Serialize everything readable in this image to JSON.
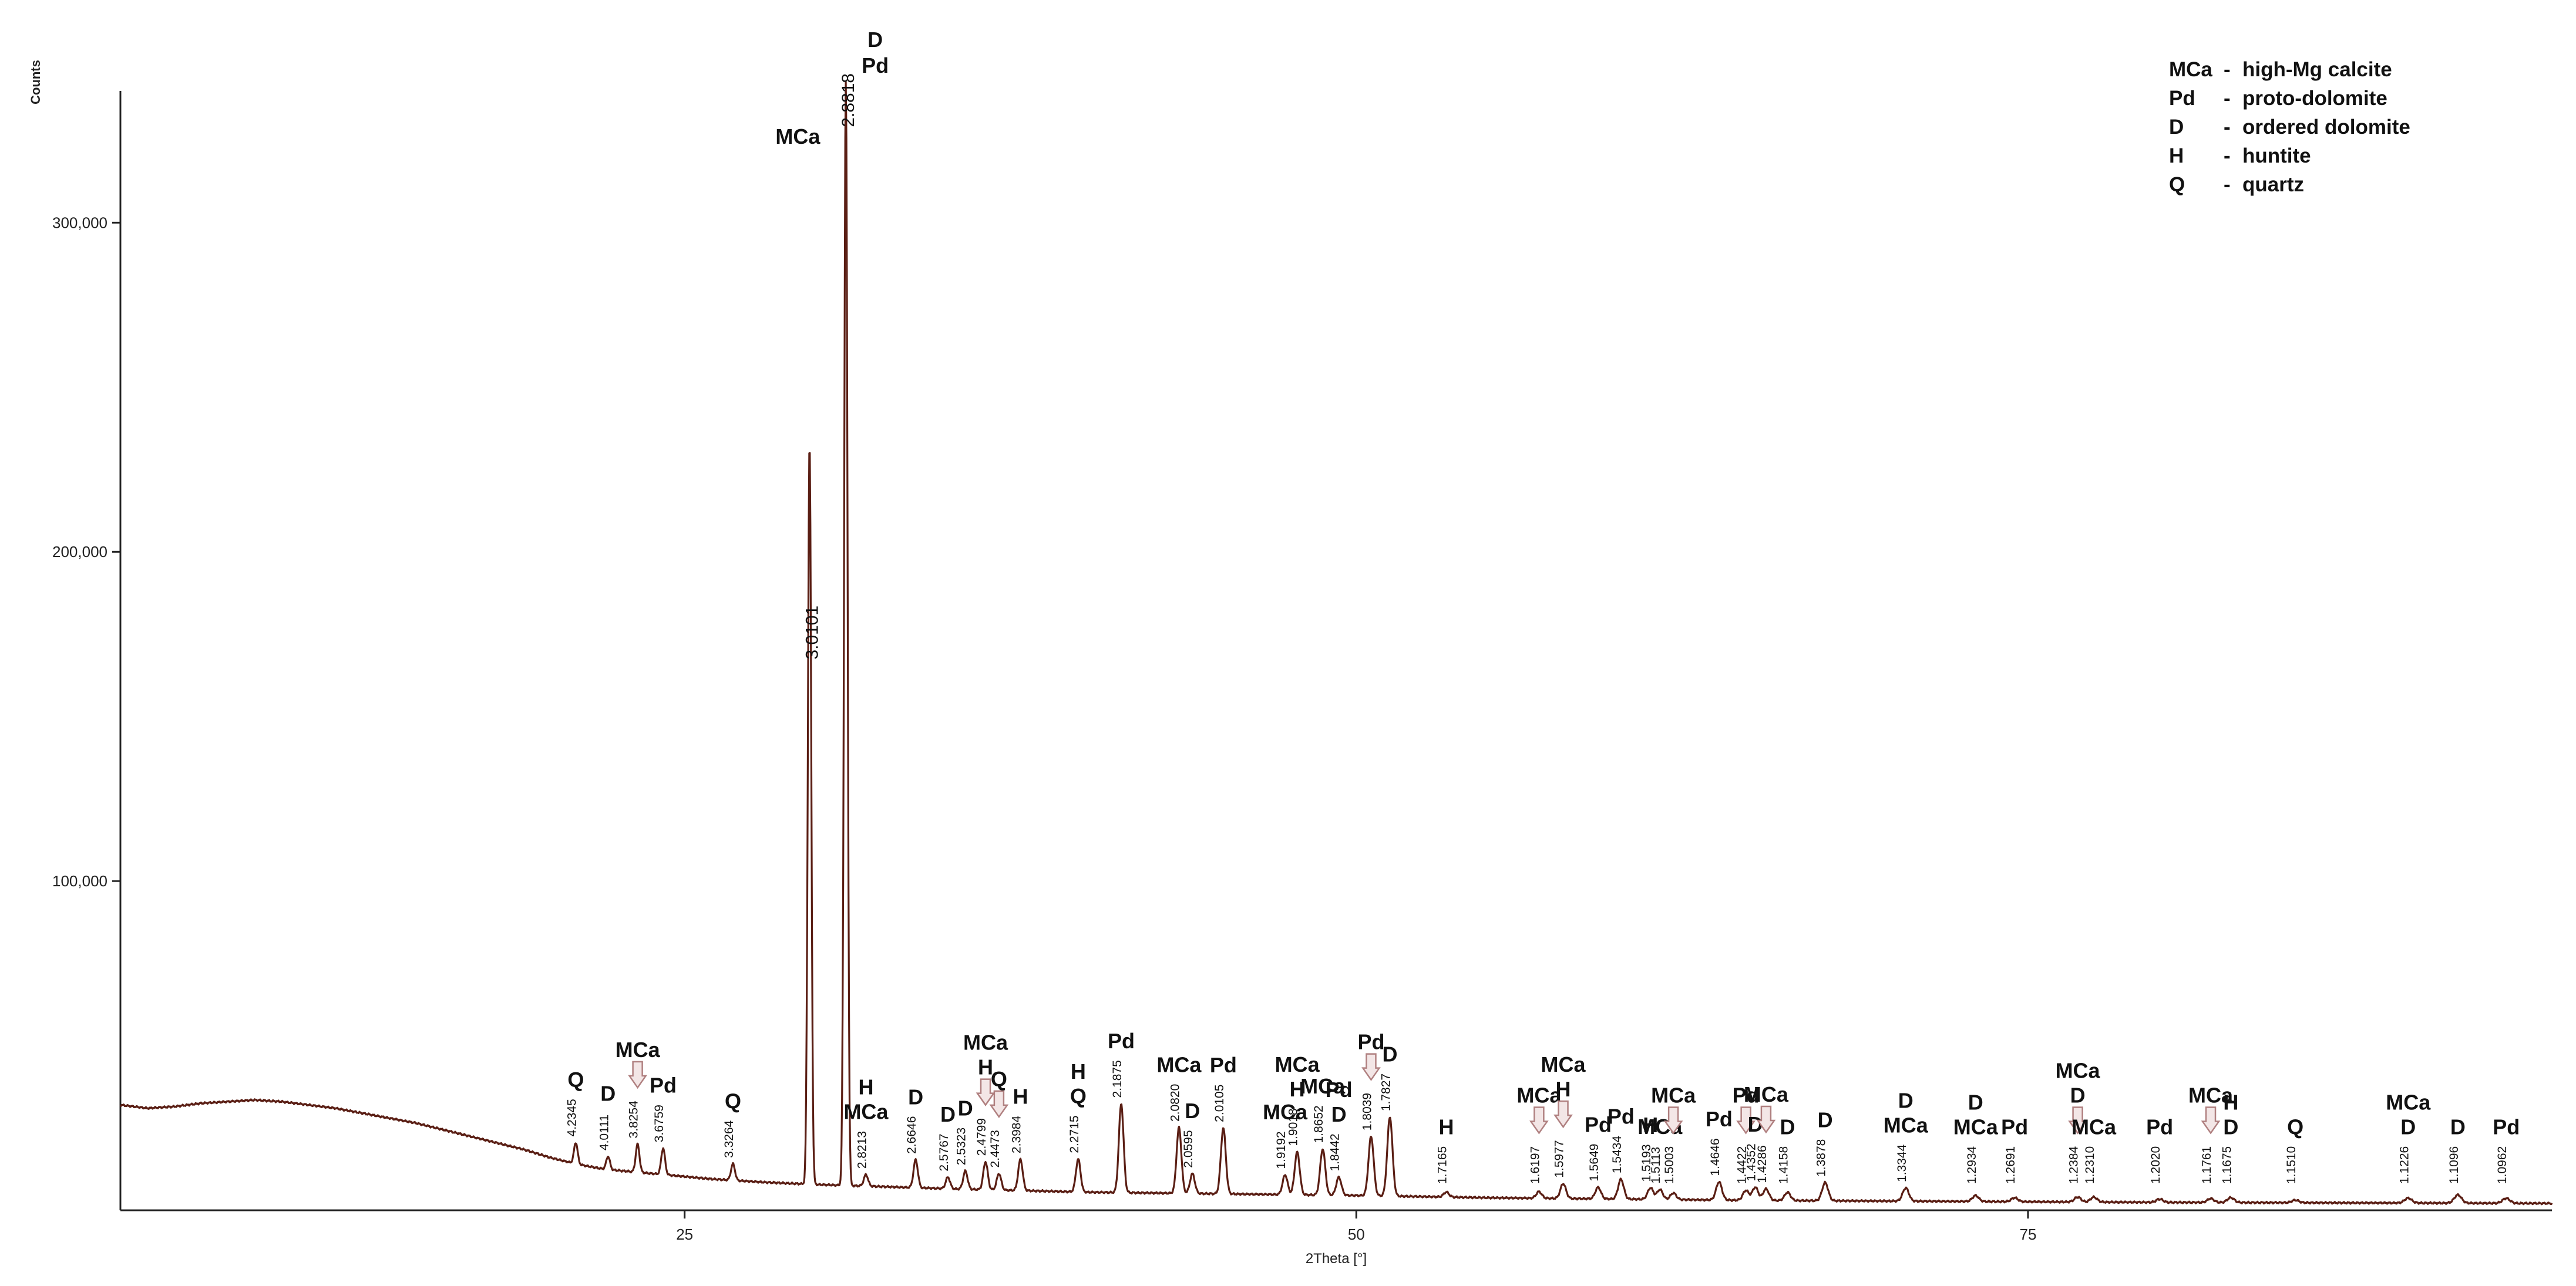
{
  "chart_data": {
    "type": "line",
    "title": "",
    "xlabel": "2Theta [°]",
    "ylabel": "Counts",
    "xlim": [
      4,
      94.5
    ],
    "ylim": [
      0,
      340000
    ],
    "xticks": [
      25,
      50,
      75
    ],
    "xtick_labels": [
      "25",
      "50",
      "75"
    ],
    "yticks": [
      100000,
      200000,
      300000
    ],
    "ytick_labels": [
      "100,000",
      "200,000",
      "300,000"
    ],
    "grid": false,
    "legend_position": "top-right",
    "line_color": "#5a1e14",
    "arrow_color": "#b08080",
    "legend": [
      {
        "abbr": "MCa",
        "dash": "-",
        "name": "high-Mg calcite"
      },
      {
        "abbr": "Pd",
        "dash": "-",
        "name": "proto-dolomite"
      },
      {
        "abbr": "D",
        "dash": "-",
        "name": "ordered dolomite"
      },
      {
        "abbr": "H",
        "dash": "-",
        "name": "huntite"
      },
      {
        "abbr": "Q",
        "dash": "-",
        "name": "quartz"
      }
    ],
    "background": [
      [
        4,
        32000
      ],
      [
        5,
        31000
      ],
      [
        6,
        31500
      ],
      [
        7,
        32500
      ],
      [
        8,
        33000
      ],
      [
        9,
        33500
      ],
      [
        10,
        33000
      ],
      [
        11,
        32000
      ],
      [
        12,
        31000
      ],
      [
        13,
        29500
      ],
      [
        14,
        28000
      ],
      [
        15,
        26500
      ],
      [
        16,
        24500
      ],
      [
        17,
        22500
      ],
      [
        18,
        20500
      ],
      [
        19,
        18500
      ],
      [
        20,
        16000
      ],
      [
        21,
        14000
      ],
      [
        22,
        12500
      ],
      [
        24,
        11000
      ],
      [
        26,
        9500
      ],
      [
        28,
        8500
      ],
      [
        30,
        7800
      ],
      [
        35,
        6500
      ],
      [
        40,
        5500
      ],
      [
        45,
        5000
      ],
      [
        50,
        4500
      ],
      [
        55,
        3800
      ],
      [
        60,
        3400
      ],
      [
        65,
        3000
      ],
      [
        70,
        2800
      ],
      [
        75,
        2600
      ],
      [
        80,
        2400
      ],
      [
        85,
        2300
      ],
      [
        90,
        2200
      ],
      [
        94.5,
        2100
      ]
    ],
    "peaks": [
      {
        "two_theta": 20.95,
        "d": "4.2345",
        "intensity": 6500,
        "phases": [
          "Q"
        ]
      },
      {
        "two_theta": 22.15,
        "d": "4.0111",
        "intensity": 4000,
        "phases": [
          "D"
        ]
      },
      {
        "two_theta": 23.25,
        "d": "3.8254",
        "intensity": 8500,
        "phases": [
          "MCa"
        ],
        "arrow": true
      },
      {
        "two_theta": 24.2,
        "d": "3.6759",
        "intensity": 8000,
        "phases": [
          "Pd"
        ]
      },
      {
        "two_theta": 26.8,
        "d": "3.3264",
        "intensity": 5000,
        "phases": [
          "Q"
        ]
      },
      {
        "two_theta": 29.65,
        "d": "3.0101",
        "intensity": 225000,
        "phases": [
          "MCa"
        ]
      },
      {
        "two_theta": 31.0,
        "d": "2.8818",
        "intensity": 335000,
        "phases": [
          "D",
          "Pd"
        ]
      },
      {
        "two_theta": 31.75,
        "d": "2.8213",
        "intensity": 3500,
        "phases": [
          "H",
          "MCa"
        ]
      },
      {
        "two_theta": 33.6,
        "d": "2.6646",
        "intensity": 8500,
        "phases": [
          "D"
        ]
      },
      {
        "two_theta": 34.8,
        "d": "2.5767",
        "intensity": 3500,
        "phases": [
          "D"
        ]
      },
      {
        "two_theta": 35.45,
        "d": "2.5323",
        "intensity": 5500,
        "phases": [
          "D"
        ]
      },
      {
        "two_theta": 36.2,
        "d": "2.4799",
        "intensity": 8500,
        "phases": [
          "MCa",
          "H"
        ],
        "arrow": true
      },
      {
        "two_theta": 36.7,
        "d": "2.4473",
        "intensity": 5000,
        "phases": [
          "Q"
        ],
        "arrow": true
      },
      {
        "two_theta": 37.5,
        "d": "2.3984",
        "intensity": 9500,
        "phases": [
          "H"
        ]
      },
      {
        "two_theta": 39.65,
        "d": "2.2715",
        "intensity": 10000,
        "phases": [
          "H",
          "Q"
        ]
      },
      {
        "two_theta": 41.25,
        "d": "2.1875",
        "intensity": 27000,
        "phases": [
          "Pd"
        ]
      },
      {
        "two_theta": 43.4,
        "d": "2.0820",
        "intensity": 20000,
        "phases": [
          "MCa"
        ]
      },
      {
        "two_theta": 43.9,
        "d": "2.0595",
        "intensity": 6000,
        "phases": [
          "D"
        ]
      },
      {
        "two_theta": 45.05,
        "d": "2.0105",
        "intensity": 20000,
        "phases": [
          "Pd"
        ]
      },
      {
        "two_theta": 47.35,
        "d": "1.9192",
        "intensity": 6000,
        "phases": [
          "MCa"
        ]
      },
      {
        "two_theta": 47.8,
        "d": "1.9018",
        "intensity": 13000,
        "phases": [
          "MCa",
          "H"
        ]
      },
      {
        "two_theta": 48.75,
        "d": "1.8652",
        "intensity": 14000,
        "phases": [
          "MCa"
        ]
      },
      {
        "two_theta": 49.35,
        "d": "1.8442",
        "intensity": 5500,
        "phases": [
          "Pd",
          "D"
        ]
      },
      {
        "two_theta": 50.55,
        "d": "1.8039",
        "intensity": 18000,
        "phases": [
          "Pd"
        ],
        "arrow": true
      },
      {
        "two_theta": 51.25,
        "d": "1.7827",
        "intensity": 24000,
        "phases": [
          "D"
        ]
      },
      {
        "two_theta": 53.35,
        "d": "1.7165",
        "intensity": 1500,
        "phases": [
          "H"
        ]
      },
      {
        "two_theta": 56.8,
        "d": "1.6197",
        "intensity": 2000,
        "phases": [
          "MCa"
        ],
        "arrow": true
      },
      {
        "two_theta": 57.7,
        "d": "1.5977",
        "intensity": 4500,
        "phases": [
          "MCa",
          "H"
        ],
        "arrow": true
      },
      {
        "two_theta": 59.0,
        "d": "1.5649",
        "intensity": 3500,
        "phases": [
          "Pd"
        ]
      },
      {
        "two_theta": 59.85,
        "d": "1.5434",
        "intensity": 6000,
        "phases": [
          "Pd"
        ]
      },
      {
        "two_theta": 60.95,
        "d": "1.5193",
        "intensity": 3500,
        "phases": [
          "H"
        ]
      },
      {
        "two_theta": 61.3,
        "d": "1.5113",
        "intensity": 3000,
        "phases": [
          "MCa"
        ]
      },
      {
        "two_theta": 61.8,
        "d": "1.5003",
        "intensity": 2000,
        "phases": [
          "MCa"
        ],
        "arrow": true
      },
      {
        "two_theta": 63.5,
        "d": "1.4646",
        "intensity": 5500,
        "phases": [
          "Pd"
        ]
      },
      {
        "two_theta": 64.5,
        "d": "1.4422",
        "intensity": 3000,
        "phases": [
          "Pd"
        ],
        "arrow": true
      },
      {
        "two_theta": 64.85,
        "d": "1.4352",
        "intensity": 4000,
        "phases": [
          "D"
        ]
      },
      {
        "two_theta": 65.25,
        "d": "1.4286",
        "intensity": 3500,
        "phases": [
          "MCa"
        ],
        "arrow": true
      },
      {
        "two_theta": 66.05,
        "d": "1.4158",
        "intensity": 2500,
        "phases": [
          "D"
        ]
      },
      {
        "two_theta": 67.45,
        "d": "1.3878",
        "intensity": 5500,
        "phases": [
          "D"
        ]
      },
      {
        "two_theta": 70.45,
        "d": "1.3344",
        "intensity": 4000,
        "phases": [
          "D",
          "MCa"
        ]
      },
      {
        "two_theta": 73.05,
        "d": "1.2934",
        "intensity": 1800,
        "phases": [
          "D",
          "MCa"
        ]
      },
      {
        "two_theta": 74.5,
        "d": "1.2691",
        "intensity": 1200,
        "phases": [
          "Pd"
        ]
      },
      {
        "two_theta": 76.85,
        "d": "1.2384",
        "intensity": 1500,
        "phases": [
          "MCa",
          "D"
        ],
        "arrow": true
      },
      {
        "two_theta": 77.45,
        "d": "1.2310",
        "intensity": 1500,
        "phases": [
          "MCa"
        ]
      },
      {
        "two_theta": 79.9,
        "d": "1.2020",
        "intensity": 1000,
        "phases": [
          "Pd"
        ]
      },
      {
        "two_theta": 81.8,
        "d": "1.1761",
        "intensity": 1200,
        "phases": [
          "MCa"
        ],
        "arrow": true
      },
      {
        "two_theta": 82.55,
        "d": "1.1675",
        "intensity": 1500,
        "phases": [
          "H",
          "D"
        ]
      },
      {
        "two_theta": 84.95,
        "d": "1.1510",
        "intensity": 800,
        "phases": [
          "Q"
        ]
      },
      {
        "two_theta": 89.15,
        "d": "1.1226",
        "intensity": 1500,
        "phases": [
          "MCa",
          "D"
        ]
      },
      {
        "two_theta": 91.0,
        "d": "1.1096",
        "intensity": 2500,
        "phases": [
          "D"
        ]
      },
      {
        "two_theta": 92.8,
        "d": "1.0962",
        "intensity": 1500,
        "phases": [
          "Pd"
        ]
      }
    ]
  }
}
